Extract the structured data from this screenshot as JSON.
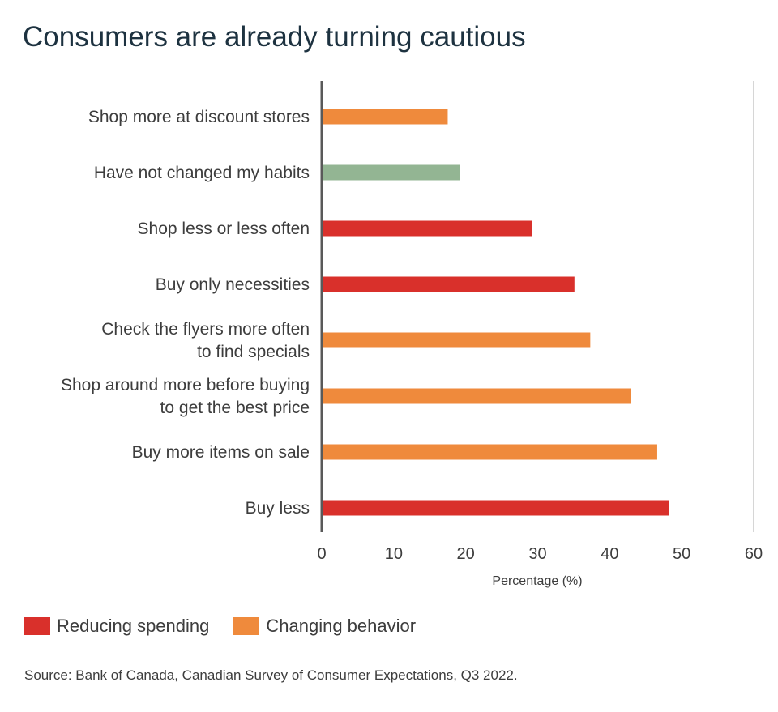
{
  "title": "Consumers are already turning cautious",
  "colors": {
    "reducing": "#d9302b",
    "changing": "#ef8a3c",
    "neutral": "#93b593",
    "axis": "#595959",
    "gridline": "#c8c8c8"
  },
  "chart_data": {
    "type": "bar",
    "orientation": "horizontal",
    "xlabel": "Percentage (%)",
    "xlim": [
      0,
      60
    ],
    "xticks": [
      "0",
      "10",
      "20",
      "30",
      "40",
      "50",
      "60"
    ],
    "grid": false,
    "categories": [
      [
        "Shop more at discount stores"
      ],
      [
        "Have not changed my habits"
      ],
      [
        "Shop less or less often"
      ],
      [
        "Buy only necessities"
      ],
      [
        "Check the flyers more often",
        "to find specials"
      ],
      [
        "Shop around more before buying",
        "to get the best price"
      ],
      [
        "Buy more items on sale"
      ],
      [
        "Buy less"
      ]
    ],
    "values": [
      17.5,
      19.2,
      29.2,
      35.1,
      37.3,
      43.0,
      46.6,
      48.2
    ],
    "groups": [
      "changing",
      "neutral",
      "reducing",
      "reducing",
      "changing",
      "changing",
      "changing",
      "reducing"
    ],
    "legend_position": "bottom-left"
  },
  "legend": {
    "items": [
      {
        "key": "reducing",
        "label": "Reducing spending"
      },
      {
        "key": "changing",
        "label": "Changing behavior"
      }
    ]
  },
  "source": "Source: Bank of Canada, Canadian Survey of Consumer Expectations, Q3 2022."
}
